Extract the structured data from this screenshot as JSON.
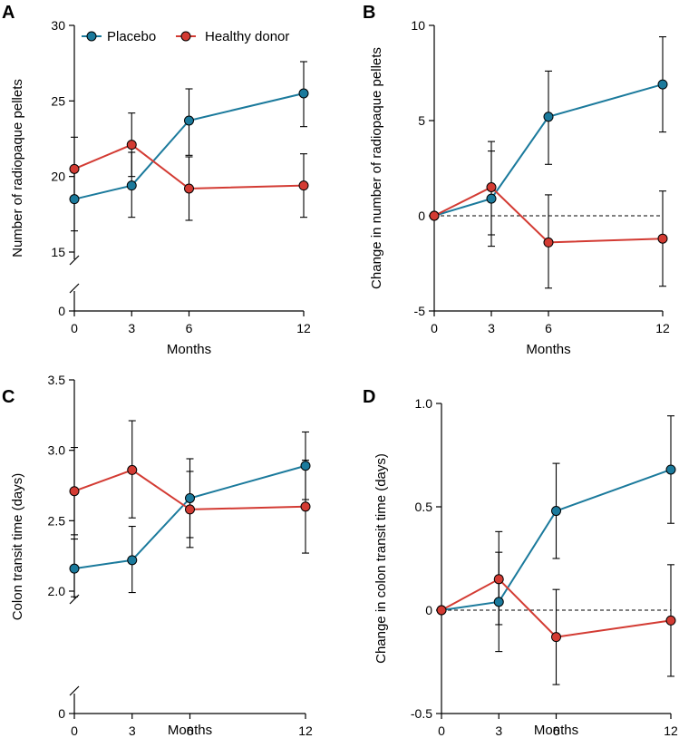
{
  "legend": {
    "placebo": "Placebo",
    "donor": "Healthy donor"
  },
  "colors": {
    "placebo": "#1b7a9c",
    "donor": "#d33b33"
  },
  "chart_data": [
    {
      "panel": "A",
      "type": "line",
      "title": "",
      "xlabel": "Months",
      "ylabel": "Number of radiopaque pellets",
      "x": [
        0,
        3,
        6,
        12
      ],
      "xticks": [
        "0",
        "3",
        "6",
        "12"
      ],
      "yticks": [
        15,
        20,
        25,
        30
      ],
      "ylim": [
        15,
        30
      ],
      "broken_axis_zero": "0",
      "series": [
        {
          "name": "Placebo",
          "values": [
            18.5,
            19.4,
            23.7,
            25.5
          ],
          "err_low": [
            16.4,
            17.3,
            21.4,
            23.3
          ],
          "err_high": [
            20.7,
            21.6,
            25.8,
            27.6
          ]
        },
        {
          "name": "Healthy donor",
          "values": [
            20.5,
            22.1,
            19.2,
            19.4
          ],
          "err_low": [
            18.4,
            20.0,
            17.1,
            17.3
          ],
          "err_high": [
            22.6,
            24.2,
            21.3,
            21.5
          ]
        }
      ]
    },
    {
      "panel": "B",
      "type": "line",
      "title": "",
      "xlabel": "Months",
      "ylabel": "Change in number of radiopaque pellets",
      "x": [
        0,
        3,
        6,
        12
      ],
      "xticks": [
        "0",
        "3",
        "6",
        "12"
      ],
      "yticks": [
        -5,
        0,
        5,
        10
      ],
      "ylim": [
        -5,
        10
      ],
      "reference_line": 0,
      "series": [
        {
          "name": "Placebo",
          "values": [
            0,
            0.9,
            5.2,
            6.9
          ],
          "err_low": [
            0,
            -1.6,
            2.7,
            4.4
          ],
          "err_high": [
            0,
            3.4,
            7.6,
            9.4
          ]
        },
        {
          "name": "Healthy donor",
          "values": [
            0,
            1.5,
            -1.4,
            -1.2
          ],
          "err_low": [
            0,
            -1.0,
            -3.8,
            -3.7
          ],
          "err_high": [
            0,
            3.9,
            1.1,
            1.3
          ]
        }
      ]
    },
    {
      "panel": "C",
      "type": "line",
      "title": "",
      "xlabel": "Months",
      "ylabel": "Colon transit time (days)",
      "x": [
        0,
        3,
        6,
        12
      ],
      "xticks": [
        "0",
        "3",
        "6",
        "12"
      ],
      "yticks": [
        2.0,
        2.5,
        3.0,
        3.5
      ],
      "ytick_labels": [
        "2.0",
        "2.5",
        "3.0",
        "3.5"
      ],
      "ylim": [
        2.0,
        3.5
      ],
      "broken_axis_zero": "0",
      "series": [
        {
          "name": "Placebo",
          "values": [
            2.16,
            2.22,
            2.66,
            2.89
          ],
          "err_low": [
            1.96,
            1.99,
            2.38,
            2.65
          ],
          "err_high": [
            2.37,
            2.46,
            2.94,
            3.13
          ]
        },
        {
          "name": "Healthy donor",
          "values": [
            2.71,
            2.86,
            2.58,
            2.6
          ],
          "err_low": [
            2.4,
            2.52,
            2.31,
            2.27
          ],
          "err_high": [
            3.02,
            3.21,
            2.85,
            2.93
          ]
        }
      ]
    },
    {
      "panel": "D",
      "type": "line",
      "title": "",
      "xlabel": "Months",
      "ylabel": "Change in colon transit time (days)",
      "x": [
        0,
        3,
        6,
        12
      ],
      "xticks": [
        "0",
        "3",
        "6",
        "12"
      ],
      "yticks": [
        -0.5,
        0,
        0.5,
        1.0
      ],
      "ytick_labels": [
        "-0.5",
        "0",
        "0.5",
        "1.0"
      ],
      "ylim": [
        -0.5,
        1.0
      ],
      "reference_line": 0,
      "series": [
        {
          "name": "Placebo",
          "values": [
            0,
            0.04,
            0.48,
            0.68
          ],
          "err_low": [
            0,
            -0.2,
            0.25,
            0.42
          ],
          "err_high": [
            0,
            0.28,
            0.71,
            0.94
          ]
        },
        {
          "name": "Healthy donor",
          "values": [
            0,
            0.15,
            -0.13,
            -0.05
          ],
          "err_low": [
            0,
            -0.07,
            -0.36,
            -0.32
          ],
          "err_high": [
            0,
            0.38,
            0.1,
            0.22
          ]
        }
      ]
    }
  ]
}
